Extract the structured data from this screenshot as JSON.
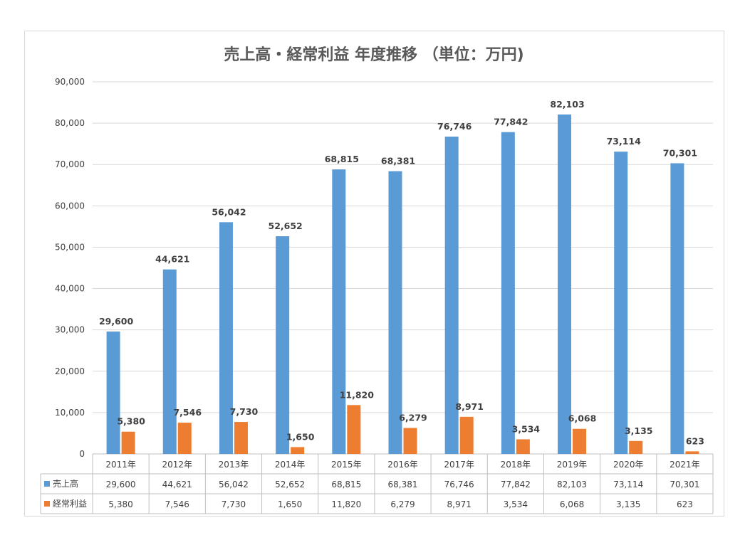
{
  "chart_data": {
    "type": "bar",
    "title": "売上高・経常利益 年度推移 （単位：万円)",
    "categories": [
      "2011年",
      "2012年",
      "2013年",
      "2014年",
      "2015年",
      "2016年",
      "2017年",
      "2018年",
      "2019年",
      "2020年",
      "2021年"
    ],
    "series": [
      {
        "name": "売上高",
        "color": "#5b9bd5",
        "values": [
          29600,
          44621,
          56042,
          52652,
          68815,
          68381,
          76746,
          77842,
          82103,
          73114,
          70301
        ]
      },
      {
        "name": "経常利益",
        "color": "#ed7d31",
        "values": [
          5380,
          7546,
          7730,
          1650,
          11820,
          6279,
          8971,
          3534,
          6068,
          3135,
          623
        ]
      }
    ],
    "ylim": [
      0,
      90000
    ],
    "yticks": [
      0,
      10000,
      20000,
      30000,
      40000,
      50000,
      60000,
      70000,
      80000,
      90000
    ],
    "ytick_labels": [
      "0",
      "10,000",
      "20,000",
      "30,000",
      "40,000",
      "50,000",
      "60,000",
      "70,000",
      "80,000",
      "90,000"
    ],
    "data_labels": [
      [
        "29,600",
        "44,621",
        "56,042",
        "52,652",
        "68,815",
        "68,381",
        "76,746",
        "77,842",
        "82,103",
        "73,114",
        "70,301"
      ],
      [
        "5,380",
        "7,546",
        "7,730",
        "1,650",
        "11,820",
        "6,279",
        "8,971",
        "3,534",
        "6,068",
        "3,135",
        "623"
      ]
    ],
    "grid": true,
    "legend": "data-table"
  }
}
